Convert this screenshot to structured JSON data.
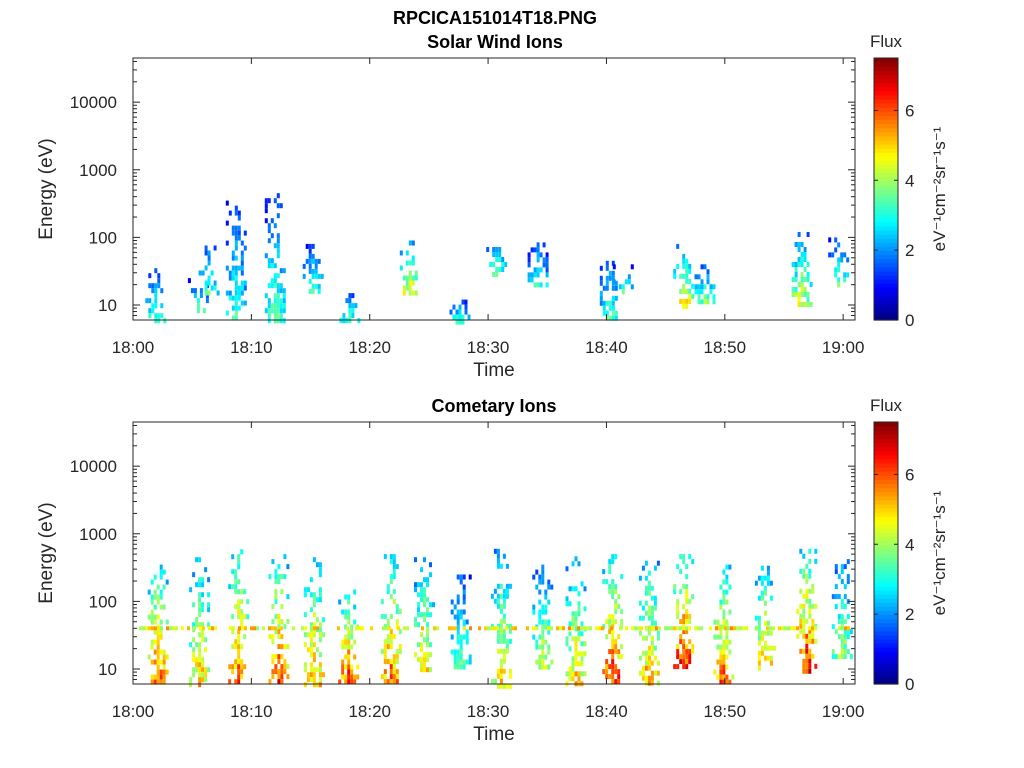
{
  "figure_title": "RPCICA151014T18.PNG",
  "colorbar": {
    "title": "Flux",
    "label": "eV⁻¹cm⁻²sr⁻¹s⁻¹",
    "ticks": [
      "0",
      "2",
      "4",
      "6"
    ],
    "range": [
      0,
      7.5
    ],
    "colormap": "jet"
  },
  "chart_data": [
    {
      "type": "heatmap",
      "title": "Solar Wind Ions",
      "xlabel": "Time",
      "ylabel": "Energy (eV)",
      "xticks": [
        "18:00",
        "18:10",
        "18:20",
        "18:30",
        "18:40",
        "18:50",
        "19:00"
      ],
      "yticks": [
        "10",
        "100",
        "1000",
        "10000"
      ],
      "xlim": [
        "18:00",
        "19:01"
      ],
      "ylim": [
        6,
        45000
      ],
      "yscale": "log",
      "bursts": [
        {
          "t": "18:01.8",
          "emin": 6,
          "emax": 35,
          "flux": 3.5
        },
        {
          "t": "18:05.4",
          "emin": 8,
          "emax": 25,
          "flux": 3.8
        },
        {
          "t": "18:06.3",
          "emin": 15,
          "emax": 90,
          "flux": 3.5
        },
        {
          "t": "18:08.6",
          "emin": 6,
          "emax": 350,
          "flux": 3.4
        },
        {
          "t": "18:11.9",
          "emin": 6,
          "emax": 450,
          "flux": 3.6
        },
        {
          "t": "18:15.1",
          "emin": 15,
          "emax": 80,
          "flux": 3.6
        },
        {
          "t": "18:18.2",
          "emin": 6,
          "emax": 15,
          "flux": 3.7
        },
        {
          "t": "18:23.3",
          "emin": 15,
          "emax": 90,
          "flux": 4.8
        },
        {
          "t": "18:27.5",
          "emin": 6,
          "emax": 12,
          "flux": 3.5
        },
        {
          "t": "18:30.6",
          "emin": 30,
          "emax": 120,
          "flux": 3.7
        },
        {
          "t": "18:34.1",
          "emin": 20,
          "emax": 100,
          "flux": 3.3
        },
        {
          "t": "18:40.2",
          "emin": 6,
          "emax": 45,
          "flux": 3.7
        },
        {
          "t": "18:41.3",
          "emin": 15,
          "emax": 40,
          "flux": 3.6
        },
        {
          "t": "18:46.4",
          "emin": 10,
          "emax": 80,
          "flux": 5.0
        },
        {
          "t": "18:48.2",
          "emin": 12,
          "emax": 40,
          "flux": 3.8
        },
        {
          "t": "18:56.4",
          "emin": 10,
          "emax": 120,
          "flux": 4.6
        },
        {
          "t": "18:59.5",
          "emin": 20,
          "emax": 100,
          "flux": 3.7
        }
      ]
    },
    {
      "type": "heatmap",
      "title": "Cometary Ions",
      "xlabel": "Time",
      "ylabel": "Energy (eV)",
      "xticks": [
        "18:00",
        "18:10",
        "18:20",
        "18:30",
        "18:40",
        "18:50",
        "19:00"
      ],
      "yticks": [
        "10",
        "100",
        "1000",
        "10000"
      ],
      "xlim": [
        "18:00",
        "19:01"
      ],
      "ylim": [
        6,
        45000
      ],
      "yscale": "log",
      "bursts": [
        {
          "t": "18:02.0",
          "emin": 6,
          "emax": 350,
          "flux": 6.2
        },
        {
          "t": "18:05.5",
          "emin": 6,
          "emax": 450,
          "flux": 5.3
        },
        {
          "t": "18:08.8",
          "emin": 6,
          "emax": 700,
          "flux": 6.0
        },
        {
          "t": "18:12.2",
          "emin": 6,
          "emax": 500,
          "flux": 6.2
        },
        {
          "t": "18:15.2",
          "emin": 6,
          "emax": 450,
          "flux": 5.6
        },
        {
          "t": "18:18.1",
          "emin": 6,
          "emax": 150,
          "flux": 6.3
        },
        {
          "t": "18:21.7",
          "emin": 6,
          "emax": 500,
          "flux": 6.0
        },
        {
          "t": "18:24.5",
          "emin": 10,
          "emax": 450,
          "flux": 5.0
        },
        {
          "t": "18:27.6",
          "emin": 10,
          "emax": 250,
          "flux": 3.8
        },
        {
          "t": "18:31.0",
          "emin": 6,
          "emax": 600,
          "flux": 5.0
        },
        {
          "t": "18:34.5",
          "emin": 10,
          "emax": 350,
          "flux": 4.5
        },
        {
          "t": "18:37.3",
          "emin": 6,
          "emax": 550,
          "flux": 5.2
        },
        {
          "t": "18:40.4",
          "emin": 6,
          "emax": 500,
          "flux": 6.4
        },
        {
          "t": "18:43.5",
          "emin": 6,
          "emax": 400,
          "flux": 5.6
        },
        {
          "t": "18:46.4",
          "emin": 10,
          "emax": 500,
          "flux": 6.8
        },
        {
          "t": "18:49.8",
          "emin": 6,
          "emax": 350,
          "flux": 6.0
        },
        {
          "t": "18:53.3",
          "emin": 10,
          "emax": 400,
          "flux": 5.4
        },
        {
          "t": "18:56.8",
          "emin": 10,
          "emax": 600,
          "flux": 6.5
        },
        {
          "t": "18:59.8",
          "emin": 15,
          "emax": 500,
          "flux": 4.2
        }
      ],
      "band": {
        "energy": 40,
        "flux": 4.7
      }
    }
  ]
}
